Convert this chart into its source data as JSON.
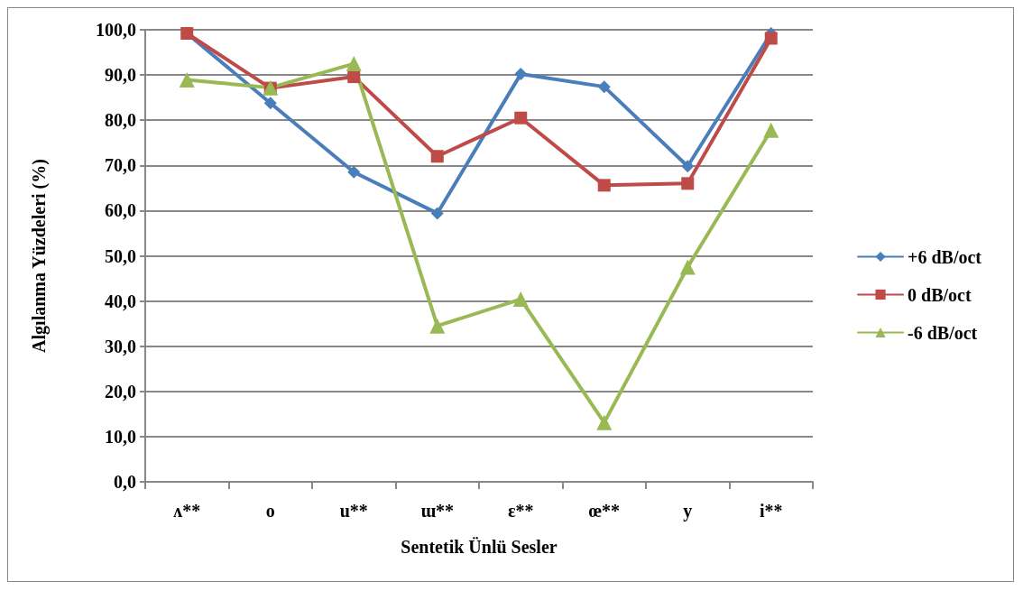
{
  "chart_data": {
    "type": "line",
    "xlabel": "Sentetik Ünlü Sesler",
    "ylabel": "Algılanma Yüzdeleri (%)",
    "categories": [
      "ʌ**",
      "o",
      "u**",
      "ɯ**",
      "ɛ**",
      "œ**",
      "y",
      "i**"
    ],
    "series": [
      {
        "name": "+6 dB/oct",
        "color": "#4a7ebb",
        "marker": "diamond",
        "values": [
          99.2,
          83.8,
          68.5,
          59.4,
          90.2,
          87.4,
          69.8,
          99.2
        ]
      },
      {
        "name": "0 dB/oct",
        "color": "#be4b48",
        "marker": "square",
        "values": [
          99.2,
          87.1,
          89.6,
          72.0,
          80.5,
          65.6,
          66.0,
          98.1
        ]
      },
      {
        "name": "-6 dB/oct",
        "color": "#98b954",
        "marker": "triangle",
        "values": [
          88.9,
          87.2,
          92.5,
          34.5,
          40.4,
          13.1,
          47.5,
          77.8
        ]
      }
    ],
    "ylim": [
      0,
      100
    ],
    "yticks": [
      {
        "value": 0,
        "label": "0,0"
      },
      {
        "value": 10,
        "label": "10,0"
      },
      {
        "value": 20,
        "label": "20,0"
      },
      {
        "value": 30,
        "label": "30,0"
      },
      {
        "value": 40,
        "label": "40,0"
      },
      {
        "value": 50,
        "label": "50,0"
      },
      {
        "value": 60,
        "label": "60,0"
      },
      {
        "value": 70,
        "label": "70,0"
      },
      {
        "value": 80,
        "label": "80,0"
      },
      {
        "value": 90,
        "label": "90,0"
      },
      {
        "value": 100,
        "label": "100,0"
      }
    ],
    "grid": "y",
    "legend": "right",
    "line_style": "solid"
  }
}
